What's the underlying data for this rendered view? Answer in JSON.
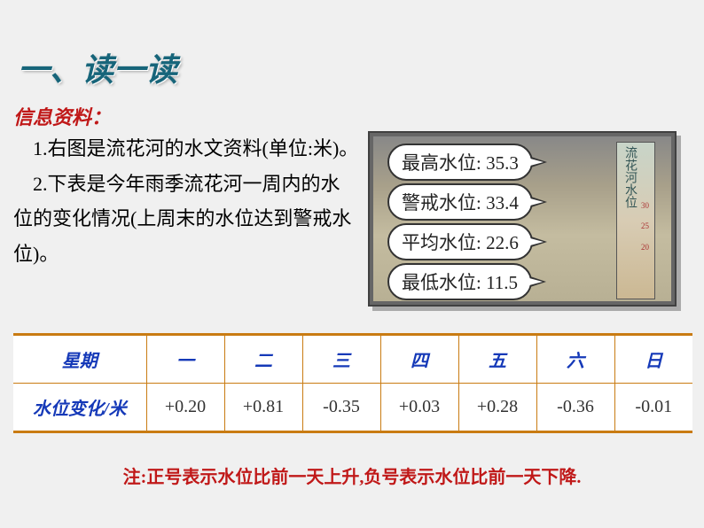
{
  "title": "一、读一读",
  "subtitle": "信息资料：",
  "paragraph1": "　1.右图是流花河的水文资料(单位:米)。",
  "paragraph2": "　2.下表是今年雨季流花河一周内的水位的变化情况(上周末的水位达到警戒水位)。",
  "water_levels": {
    "max": "最高水位: 35.3",
    "alert": "警戒水位: 33.4",
    "avg": "平均水位: 22.6",
    "min": "最低水位: 11.5"
  },
  "pillar_label": "流花河水位",
  "pillar_mark_top": "30",
  "pillar_mark_mid": "25",
  "pillar_mark_low": "20",
  "table": {
    "header_label": "星期",
    "row_label": "水位变化/米",
    "days": [
      "一",
      "二",
      "三",
      "四",
      "五",
      "六",
      "日"
    ],
    "values": [
      "+0.20",
      "+0.81",
      "-0.35",
      "+0.03",
      "+0.28",
      "-0.36",
      "-0.01"
    ]
  },
  "footnote": "注:正号表示水位比前一天上升,负号表示水位比前一天下降.",
  "colors": {
    "background": "#f0f0f0",
    "title_color": "#17657a",
    "accent_red": "#c01818",
    "table_border": "#c97b12",
    "table_header_text": "#1539b8"
  },
  "typography": {
    "title_fontsize": 36,
    "subtitle_fontsize": 22,
    "body_fontsize": 22,
    "table_fontsize": 20,
    "footnote_fontsize": 20,
    "font_family": "KaiTi / SimSun"
  }
}
